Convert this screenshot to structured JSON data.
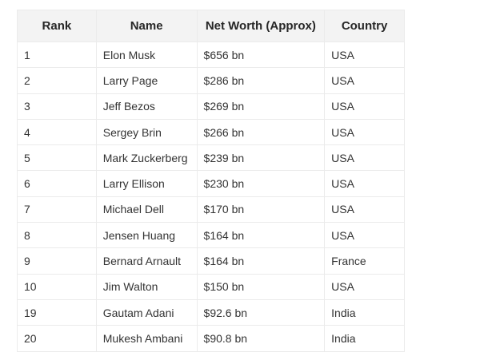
{
  "table": {
    "headers": [
      "Rank",
      "Name",
      "Net Worth (Approx)",
      "Country"
    ],
    "rows": [
      [
        "1",
        "Elon Musk",
        "$656 bn",
        "USA"
      ],
      [
        "2",
        "Larry Page",
        "$286 bn",
        "USA"
      ],
      [
        "3",
        "Jeff Bezos",
        "$269 bn",
        "USA"
      ],
      [
        "4",
        "Sergey Brin",
        "$266 bn",
        "USA"
      ],
      [
        "5",
        "Mark Zuckerberg",
        "$239 bn",
        "USA"
      ],
      [
        "6",
        "Larry Ellison",
        "$230 bn",
        "USA"
      ],
      [
        "7",
        "Michael Dell",
        "$170 bn",
        "USA"
      ],
      [
        "8",
        "Jensen Huang",
        "$164 bn",
        "USA"
      ],
      [
        "9",
        "Bernard Arnault",
        "$164 bn",
        "France"
      ],
      [
        "10",
        "Jim Walton",
        "$150 bn",
        "USA"
      ],
      [
        "19",
        "Gautam Adani",
        "$92.6 bn",
        "India"
      ],
      [
        "20",
        "Mukesh Ambani",
        "$90.8 bn",
        "India"
      ]
    ]
  }
}
